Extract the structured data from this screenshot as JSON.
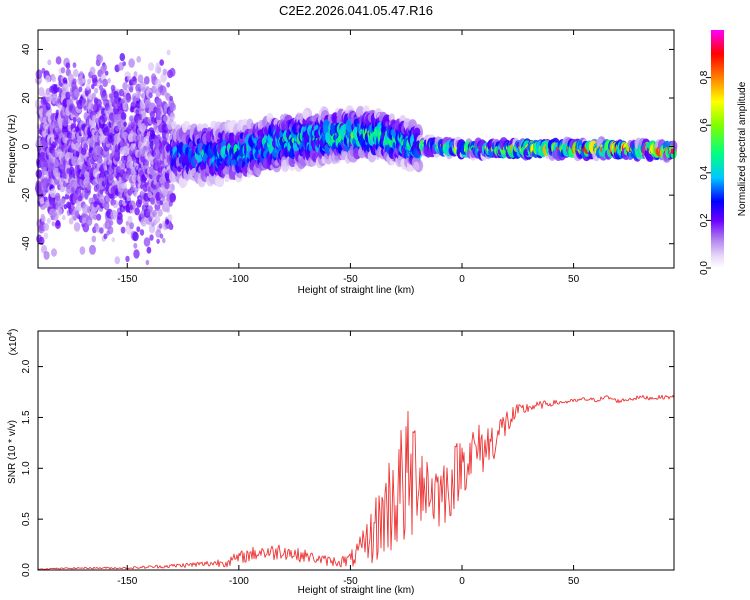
{
  "title": "C2E2.2026.041.05.47.R16",
  "chart_data": [
    {
      "type": "heatmap",
      "name": "spectrogram",
      "xlabel": "Height of straight line (km)",
      "ylabel": "Frequency (Hz)",
      "xlim": [
        -190,
        95
      ],
      "ylim": [
        -50,
        48
      ],
      "xticks": [
        -150,
        -100,
        -50,
        0,
        50
      ],
      "xtick_labels": [
        "-150",
        "-100",
        "-50",
        "0",
        "50"
      ],
      "yticks": [
        -40,
        -20,
        0,
        20,
        40
      ],
      "ytick_labels": [
        "-40",
        "-20",
        "0",
        "20",
        "40"
      ],
      "ridge": {
        "x": [
          -190,
          -170,
          -150,
          -130,
          -110,
          -100,
          -90,
          -80,
          -70,
          -60,
          -50,
          -40,
          -30,
          -25,
          -20,
          -10,
          0,
          10,
          30,
          50,
          70,
          95
        ],
        "y_center": [
          -2,
          -2,
          -3,
          -3,
          -3,
          -2,
          0,
          2,
          3,
          4,
          5,
          5,
          3,
          1,
          0,
          0,
          -1,
          -1,
          -1,
          -1,
          -1,
          -2
        ],
        "amplitude": [
          0.22,
          0.25,
          0.25,
          0.35,
          0.45,
          0.5,
          0.5,
          0.5,
          0.5,
          0.55,
          0.55,
          0.55,
          0.5,
          0.5,
          0.55,
          0.6,
          0.65,
          0.7,
          0.75,
          0.85,
          0.95,
          0.9
        ]
      },
      "colorbar": {
        "label": "Normalized spectral amplitude",
        "range": [
          0,
          1
        ],
        "ticks": [
          0.0,
          0.2,
          0.4,
          0.6,
          0.8
        ],
        "tick_labels": [
          "0.0",
          "0.2",
          "0.4",
          "0.6",
          "0.8"
        ]
      }
    },
    {
      "type": "line",
      "name": "snr",
      "xlabel": "Height of straight line (km)",
      "ylabel": "SNR (10 * v/v)",
      "multiplier": "(x10",
      "multiplier_exp": "4",
      "multiplier_close": ")",
      "xlim": [
        -190,
        95
      ],
      "ylim": [
        0,
        2.35
      ],
      "xticks": [
        -150,
        -100,
        -50,
        0,
        50
      ],
      "xtick_labels": [
        "-150",
        "-100",
        "-50",
        "0",
        "50"
      ],
      "yticks": [
        0.0,
        0.5,
        1.0,
        1.5,
        2.0
      ],
      "ytick_labels": [
        "0.0",
        "0.5",
        "1.0",
        "1.5",
        "2.0"
      ],
      "color": "#ee3333",
      "series": [
        {
          "name": "SNR",
          "x": [
            -190,
            -170,
            -150,
            -130,
            -115,
            -105,
            -100,
            -95,
            -90,
            -85,
            -80,
            -75,
            -70,
            -65,
            -60,
            -55,
            -50,
            -45,
            -40,
            -35,
            -30,
            -25,
            -22,
            -20,
            -15,
            -10,
            -5,
            0,
            5,
            10,
            15,
            20,
            25,
            30,
            35,
            40,
            45,
            50,
            55,
            60,
            65,
            70,
            75,
            80,
            85,
            90,
            95
          ],
          "y": [
            0.01,
            0.02,
            0.02,
            0.04,
            0.06,
            0.08,
            0.12,
            0.15,
            0.18,
            0.17,
            0.2,
            0.15,
            0.14,
            0.11,
            0.09,
            0.08,
            0.1,
            0.2,
            0.35,
            0.55,
            0.75,
            0.85,
            0.9,
            1.0,
            0.8,
            0.75,
            0.85,
            1.05,
            1.15,
            1.2,
            1.3,
            1.45,
            1.55,
            1.6,
            1.62,
            1.64,
            1.65,
            1.66,
            1.68,
            1.67,
            1.7,
            1.66,
            1.68,
            1.7,
            1.69,
            1.7,
            1.7
          ],
          "noise": [
            0.005,
            0.008,
            0.01,
            0.02,
            0.03,
            0.05,
            0.06,
            0.07,
            0.08,
            0.08,
            0.09,
            0.07,
            0.06,
            0.05,
            0.05,
            0.05,
            0.08,
            0.15,
            0.3,
            0.45,
            0.6,
            0.7,
            0.8,
            0.5,
            0.45,
            0.35,
            0.35,
            0.3,
            0.3,
            0.25,
            0.2,
            0.15,
            0.08,
            0.05,
            0.04,
            0.03,
            0.02,
            0.02,
            0.02,
            0.02,
            0.02,
            0.02,
            0.02,
            0.02,
            0.02,
            0.02,
            0.02
          ]
        }
      ]
    }
  ]
}
